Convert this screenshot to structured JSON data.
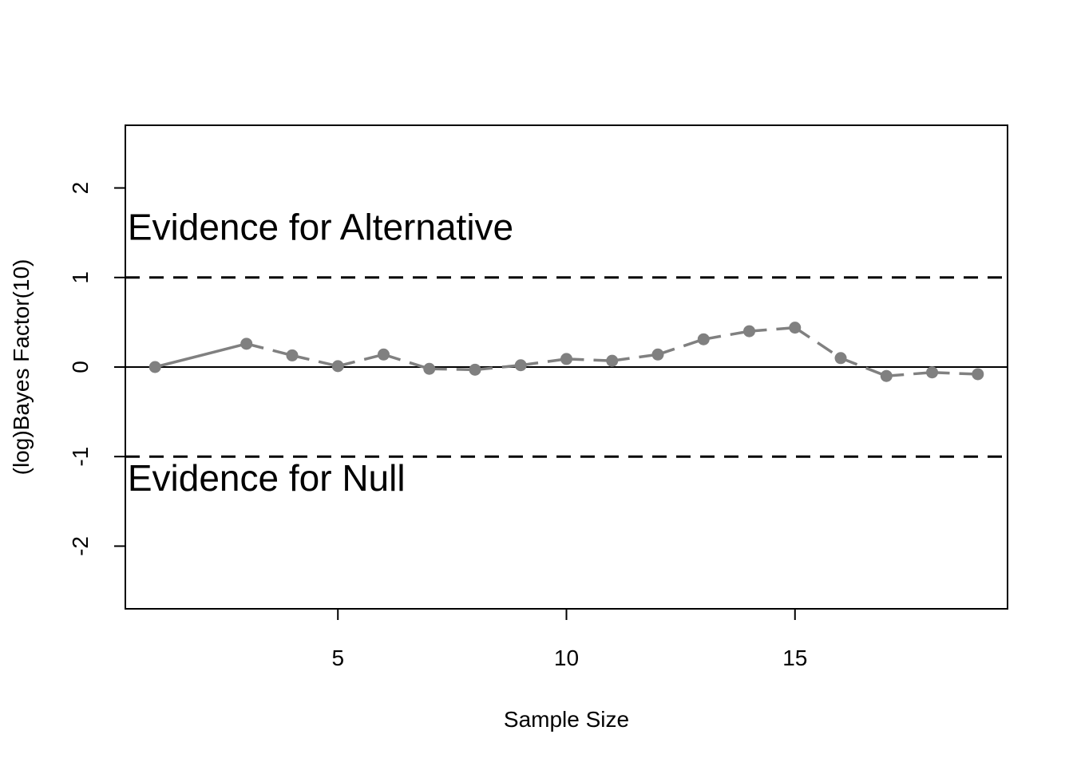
{
  "chart_data": {
    "type": "line",
    "title": "",
    "xlabel": "Sample Size",
    "ylabel": "(log)Bayes Factor(10)",
    "xlim": [
      0.35,
      19.65
    ],
    "ylim": [
      -2.7,
      2.7
    ],
    "x_ticks": [
      5,
      10,
      15
    ],
    "y_ticks": [
      -2,
      -1,
      0,
      1,
      2
    ],
    "grid": false,
    "legend": "none",
    "colors": {
      "series": "#808080",
      "reference": "#000000"
    },
    "reference_lines": [
      {
        "y": 1,
        "style": "dashed"
      },
      {
        "y": 0,
        "style": "solid"
      },
      {
        "y": -1,
        "style": "dashed"
      }
    ],
    "annotations": [
      {
        "text": "Evidence for Alternative",
        "x": 0.4,
        "y": 1.42
      },
      {
        "text": "Evidence for Null",
        "x": 0.4,
        "y": -1.38
      }
    ],
    "series": [
      {
        "x": [
          1,
          3,
          4,
          5,
          6,
          7,
          8,
          9,
          10,
          11,
          12,
          13,
          14,
          15,
          16,
          17,
          18,
          19
        ],
        "y": [
          0.0,
          0.26,
          0.13,
          0.01,
          0.14,
          -0.02,
          -0.03,
          0.02,
          0.09,
          0.07,
          0.14,
          0.31,
          0.4,
          0.44,
          0.1,
          -0.1,
          -0.06,
          -0.08
        ]
      }
    ]
  }
}
